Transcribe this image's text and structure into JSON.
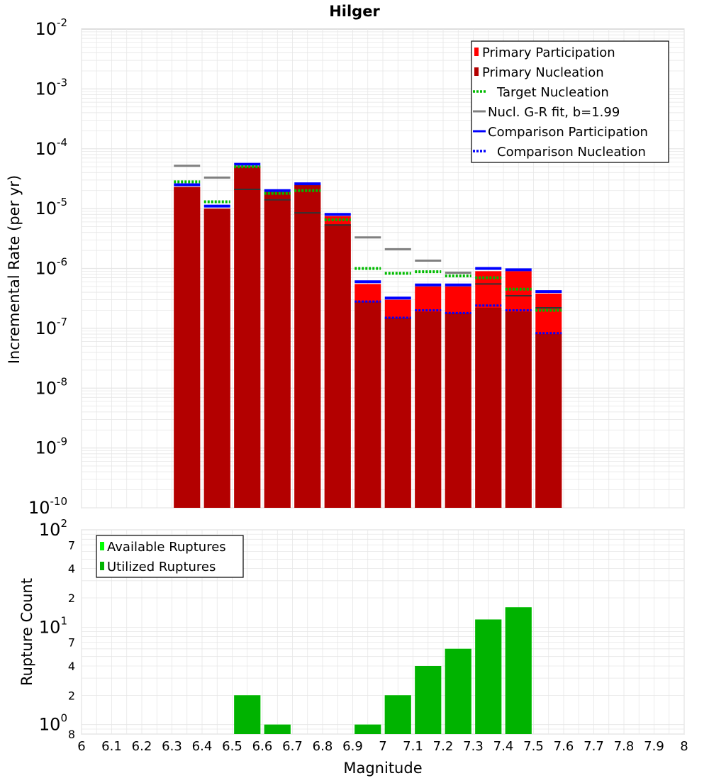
{
  "title": "Hilger",
  "colors": {
    "primary_participation": "#ff0000",
    "primary_nucleation": "#b30000",
    "target_nucleation": "#00bb00",
    "gr_fit": "#808080",
    "comparison_participation": "#0000ff",
    "comparison_nucleation": "#0000ff",
    "available_ruptures": "#00ff00",
    "utilized_ruptures": "#00b300",
    "grid": "#e6e6e6"
  },
  "chart_data": [
    {
      "type": "bar",
      "name": "rate",
      "title": "Hilger",
      "xlabel": "Magnitude",
      "ylabel": "Incremental Rate (per yr)",
      "xlim": [
        6,
        8
      ],
      "ylim": [
        1e-10,
        0.01
      ],
      "yscale": "log",
      "grid": true,
      "legend_position": "top-right",
      "x_ticks": [
        "6",
        "6.1",
        "6.2",
        "6.3",
        "6.4",
        "6.5",
        "6.6",
        "6.7",
        "6.8",
        "6.9",
        "7",
        "7.1",
        "7.2",
        "7.3",
        "7.4",
        "7.5",
        "7.6",
        "7.7",
        "7.8",
        "7.9",
        "8"
      ],
      "y_ticks": [
        {
          "base": "10",
          "exp": "-2",
          "value": 0.01
        },
        {
          "base": "10",
          "exp": "-3",
          "value": 0.001
        },
        {
          "base": "10",
          "exp": "-4",
          "value": 0.0001
        },
        {
          "base": "10",
          "exp": "-5",
          "value": 1e-05
        },
        {
          "base": "10",
          "exp": "-6",
          "value": 1e-06
        },
        {
          "base": "10",
          "exp": "-7",
          "value": 1e-07
        },
        {
          "base": "10",
          "exp": "-8",
          "value": 1e-08
        },
        {
          "base": "10",
          "exp": "-9",
          "value": 1e-09
        },
        {
          "base": "10",
          "exp": "-10",
          "value": 1e-10
        }
      ],
      "x": [
        6.35,
        6.45,
        6.55,
        6.65,
        6.75,
        6.85,
        6.95,
        7.05,
        7.15,
        7.25,
        7.35,
        7.45,
        7.55
      ],
      "series": [
        {
          "name": "Primary Participation",
          "style": "bar",
          "values": [
            2.3e-05,
            1e-05,
            5.1e-05,
            1.9e-05,
            2.5e-05,
            7.5e-06,
            5.5e-07,
            3e-07,
            5e-07,
            5e-07,
            9e-07,
            9e-07,
            3.8e-07
          ]
        },
        {
          "name": "Primary Nucleation",
          "style": "bar",
          "values": [
            2.3e-05,
            1e-05,
            5.1e-05,
            1.9e-05,
            2.5e-05,
            5.5e-06,
            2.8e-07,
            1.5e-07,
            1.9e-07,
            1.8e-07,
            2.2e-07,
            1.9e-07,
            8e-08
          ]
        },
        {
          "name": "Target Nucleation",
          "style": "dotted",
          "values": [
            2.8e-05,
            1.3e-05,
            5e-05,
            1.8e-05,
            2e-05,
            6.5e-06,
            1e-06,
            8.3e-07,
            8.8e-07,
            7.5e-07,
            7e-07,
            4.5e-07,
            2e-07
          ]
        },
        {
          "name": "Nucl. G-R fit, b=1.99",
          "style": "solid",
          "values": [
            5.2e-05,
            3.3e-05,
            null,
            null,
            null,
            null,
            3.3e-06,
            2.1e-06,
            1.35e-06,
            8.5e-07,
            null,
            null,
            null
          ]
        },
        {
          "name": "Comparison Participation",
          "style": "solid",
          "values": [
            2.5e-05,
            1.1e-05,
            5.5e-05,
            2e-05,
            2.6e-05,
            8e-06,
            6e-07,
            3.2e-07,
            5.3e-07,
            5.3e-07,
            1e-06,
            9.5e-07,
            4.1e-07
          ]
        },
        {
          "name": "Comparison Nucleation",
          "style": "dotted",
          "values": [
            null,
            null,
            null,
            null,
            null,
            null,
            2.8e-07,
            1.5e-07,
            2e-07,
            1.8e-07,
            2.4e-07,
            2e-07,
            8.3e-08
          ]
        },
        {
          "name": "",
          "style": "black-tick",
          "values": [
            null,
            null,
            2.1e-05,
            1.4e-05,
            8.5e-06,
            5.3e-06,
            null,
            null,
            null,
            null,
            5.5e-07,
            3.5e-07,
            2.2e-07
          ]
        }
      ],
      "legend": [
        {
          "label": "Primary Participation",
          "key": "primary_participation",
          "marker": "bar"
        },
        {
          "label": "Primary Nucleation",
          "key": "primary_nucleation",
          "marker": "bar"
        },
        {
          "label": "Target Nucleation",
          "key": "target_nucleation",
          "marker": "dotted"
        },
        {
          "label": "Nucl. G-R fit, b=1.99",
          "key": "gr_fit",
          "marker": "solid"
        },
        {
          "label": "Comparison Participation",
          "key": "comparison_participation",
          "marker": "solid"
        },
        {
          "label": "Comparison Nucleation",
          "key": "comparison_nucleation",
          "marker": "dotted"
        }
      ]
    },
    {
      "type": "bar",
      "name": "count",
      "xlabel": "Magnitude",
      "ylabel": "Rupture Count",
      "xlim": [
        6,
        8
      ],
      "ylim": [
        0.8,
        100
      ],
      "yscale": "log",
      "grid": true,
      "legend_position": "top-left",
      "y_ticks": [
        {
          "base": "10",
          "exp": "2",
          "value": 100
        },
        {
          "base": "7",
          "exp": "",
          "value": 70
        },
        {
          "base": "4",
          "exp": "",
          "value": 40
        },
        {
          "base": "2",
          "exp": "",
          "value": 20
        },
        {
          "base": "10",
          "exp": "1",
          "value": 10
        },
        {
          "base": "7",
          "exp": "",
          "value": 7
        },
        {
          "base": "4",
          "exp": "",
          "value": 4
        },
        {
          "base": "2",
          "exp": "",
          "value": 2
        },
        {
          "base": "10",
          "exp": "0",
          "value": 1
        },
        {
          "base": "8",
          "exp": "",
          "value": 0.8
        }
      ],
      "x": [
        6.55,
        6.65,
        6.95,
        7.05,
        7.15,
        7.25,
        7.35,
        7.45
      ],
      "series": [
        {
          "name": "Available Ruptures",
          "values": [
            2,
            1,
            1,
            2,
            4,
            6,
            12,
            16
          ]
        },
        {
          "name": "Utilized Ruptures",
          "values": [
            2,
            1,
            1,
            2,
            4,
            6,
            12,
            16
          ]
        }
      ],
      "legend": [
        {
          "label": "Available Ruptures",
          "key": "available_ruptures"
        },
        {
          "label": "Utilized Ruptures",
          "key": "utilized_ruptures"
        }
      ]
    }
  ]
}
